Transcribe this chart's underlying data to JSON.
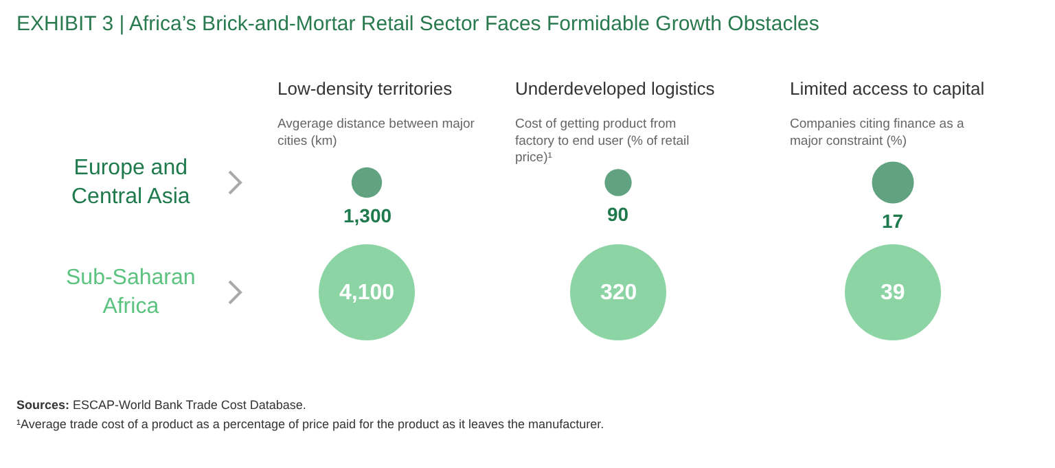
{
  "chart_data": [
    {
      "type": "other",
      "title": "Low-density territories",
      "subtitle": "Avgerage distance between major cities (km)",
      "categories": [
        "Europe and Central Asia",
        "Sub-Saharan Africa"
      ],
      "values": [
        1300,
        4100
      ],
      "value_labels": [
        "1,300",
        "4,100"
      ],
      "colors": [
        "#1e7a4c",
        "#5cc27f"
      ],
      "annotations": [
        "EXHIBIT 3 | Africa’s Brick-and-Mortar Retail Sector Faces Formidable Growth Obstacles",
        "Sources: ESCAP-World Bank Trade Cost Database.",
        "¹Average trade cost of a product as a percentage of price paid for the product as it leaves the manufacturer."
      ]
    },
    {
      "type": "other",
      "title": "Underdeveloped logistics",
      "subtitle": "Cost of getting product from factory to end user (% of retail price)¹",
      "values": [
        90,
        320
      ],
      "colors": [
        "#1e7a4c",
        "#5cc27f"
      ],
      "data_labels": true
    },
    {
      "type": "other",
      "title": "Limited access to capital",
      "subtitle": "Companies citing finance as a major constraint (%)",
      "values": [
        17,
        39
      ],
      "colors": [
        "#1e7a4c",
        "#5cc27f"
      ],
      "data_labels": true
    }
  ]
}
